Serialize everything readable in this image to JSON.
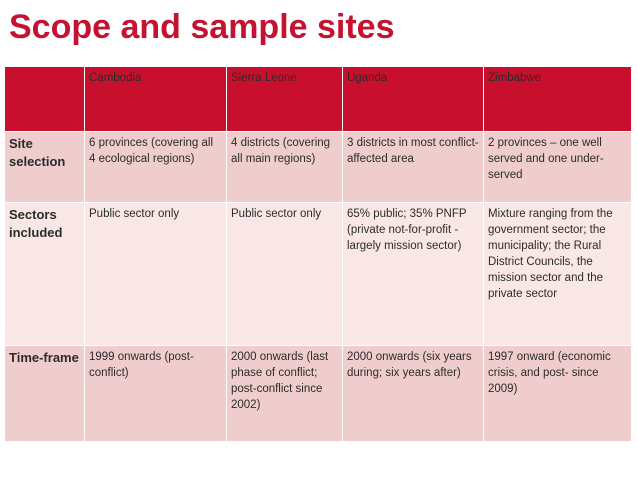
{
  "title": "Scope and sample sites",
  "columns": [
    "Cambodia",
    "Sierra Leone",
    "Uganda",
    "Zimbabwe"
  ],
  "rows": [
    {
      "label": "Site selection",
      "cells": [
        "6 provinces (covering all 4 ecological regions)",
        "4 districts (covering all main regions)",
        "3 districts in most conflict-affected area",
        "2 provinces – one well served and one under-served"
      ]
    },
    {
      "label": "Sectors included",
      "cells": [
        "Public sector only",
        "Public sector only",
        "65% public; 35% PNFP (private not-for-profit - largely mission sector)",
        "Mixture ranging from the government sector; the municipality; the Rural District Councils, the mission sector and the private sector"
      ]
    },
    {
      "label": "Time-frame",
      "cells": [
        "1999 onwards (post-conflict)",
        "2000 onwards (last phase of conflict; post-conflict since 2002)",
        "2000 onwards (six years during; six years after)",
        "1997 onward (economic crisis, and post- since 2009)"
      ]
    }
  ]
}
